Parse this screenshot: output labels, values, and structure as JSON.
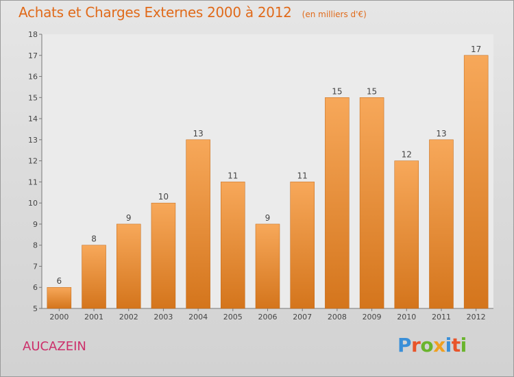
{
  "header": {
    "title": "Achats et Charges Externes 2000 à 2012",
    "unit": "(en milliers d'€)"
  },
  "commune": "AUCAZEIN",
  "logo": {
    "letters": [
      "P",
      "r",
      "o",
      "x",
      "i",
      "t",
      "i"
    ],
    "colors": [
      "#3a8fd8",
      "#e8542a",
      "#6ab42d",
      "#f0a020",
      "#3a8fd8",
      "#e8542a",
      "#6ab42d"
    ]
  },
  "colors": {
    "title": "#e06a1a",
    "commune": "#cc2f6a",
    "bar_top": "#f7a85a",
    "bar_bottom": "#d4751c"
  },
  "chart_data": {
    "type": "bar",
    "title": "Achats et Charges Externes 2000 à 2012",
    "xlabel": "",
    "ylabel": "",
    "categories": [
      "2000",
      "2001",
      "2002",
      "2003",
      "2004",
      "2005",
      "2006",
      "2007",
      "2008",
      "2009",
      "2010",
      "2011",
      "2012"
    ],
    "values": [
      6,
      8,
      9,
      10,
      13,
      11,
      9,
      11,
      15,
      15,
      12,
      13,
      17
    ],
    "ylim": [
      5,
      18
    ],
    "yticks": [
      5,
      6,
      7,
      8,
      9,
      10,
      11,
      12,
      13,
      14,
      15,
      16,
      17,
      18
    ],
    "grid": false,
    "data_labels": true
  }
}
